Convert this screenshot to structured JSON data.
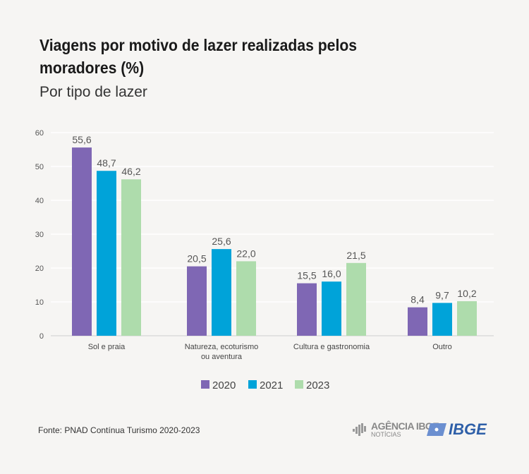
{
  "title": "Viagens por motivo de lazer realizadas pelos moradores (%)",
  "subtitle": "Por tipo de lazer",
  "source": "Fonte: PNAD Contínua Turismo 2020-2023",
  "logos": {
    "agencia_line1": "AGÊNCIA IBGE",
    "agencia_line2": "NOTÍCIAS",
    "ibge": "IBGE"
  },
  "chart_data": {
    "type": "bar",
    "categories": [
      [
        "Sol e praia"
      ],
      [
        "Natureza, ecoturismo",
        "ou aventura"
      ],
      [
        "Cultura e gastronomia"
      ],
      [
        "Outro"
      ]
    ],
    "series": [
      {
        "name": "2020",
        "color": "#7f67b4",
        "values": [
          55.6,
          20.5,
          15.5,
          8.4
        ],
        "labels": [
          "55,6",
          "20,5",
          "15,5",
          "8,4"
        ]
      },
      {
        "name": "2021",
        "color": "#00a3d9",
        "values": [
          48.7,
          25.6,
          16.0,
          9.7
        ],
        "labels": [
          "48,7",
          "25,6",
          "16,0",
          "9,7"
        ]
      },
      {
        "name": "2023",
        "color": "#aedcac",
        "values": [
          46.2,
          22.0,
          21.5,
          10.2
        ],
        "labels": [
          "46,2",
          "22,0",
          "21,5",
          "10,2"
        ]
      }
    ],
    "yticks": [
      0,
      10,
      20,
      30,
      40,
      50,
      60
    ],
    "ylim": [
      0,
      60
    ],
    "grid": true,
    "legend": "bottom"
  }
}
